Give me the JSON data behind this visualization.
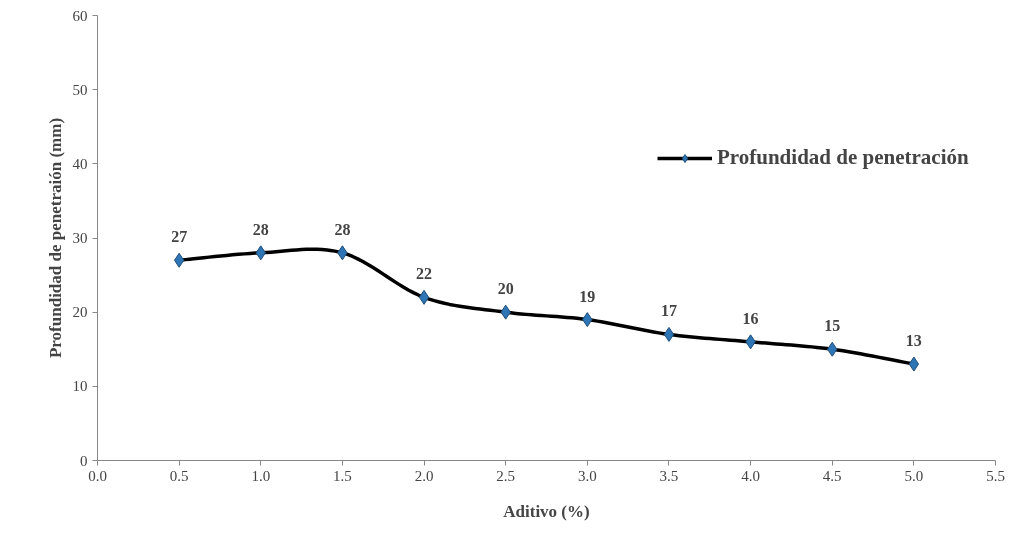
{
  "chart_data": {
    "type": "line",
    "xlabel": "Aditivo (%)",
    "ylabel": "Profundidad de penetraión (mm)",
    "x": [
      0.5,
      1.0,
      1.5,
      2.0,
      2.5,
      3.0,
      3.5,
      4.0,
      4.5,
      5.0
    ],
    "series": [
      {
        "name": "Profundidad de penetración",
        "color": "#000000",
        "colors": [
          "#2e75b6",
          "#2e75b6",
          "#2e75b6",
          "#2e75b6",
          "#2e75b6",
          "#2e75b6",
          "#2e75b6",
          "#2e75b6",
          "#2e75b6",
          "#2e75b6"
        ],
        "values": [
          27,
          28,
          28,
          22,
          20,
          19,
          17,
          16,
          15,
          13
        ]
      }
    ],
    "xlim": [
      0,
      5.5
    ],
    "xticks": [
      {
        "value": 0,
        "label": "0.0"
      },
      {
        "value": 0.5,
        "label": "0.5"
      },
      {
        "value": 1,
        "label": "1.0"
      },
      {
        "value": 1.5,
        "label": "1.5"
      },
      {
        "value": 2,
        "label": "2.0"
      },
      {
        "value": 2.5,
        "label": "2.5"
      },
      {
        "value": 3,
        "label": "3.0"
      },
      {
        "value": 3.5,
        "label": "3.5"
      },
      {
        "value": 4,
        "label": "4.0"
      },
      {
        "value": 4.5,
        "label": "4.5"
      },
      {
        "value": 5,
        "label": "5.0"
      },
      {
        "value": 5.5,
        "label": "5.5"
      }
    ],
    "ylim": [
      0,
      60
    ],
    "yticks": [
      0,
      10,
      20,
      30,
      40,
      50,
      60
    ],
    "grid": false,
    "legend": "top right",
    "marker": "diamond",
    "line_style": "solid",
    "data_labels": true
  }
}
